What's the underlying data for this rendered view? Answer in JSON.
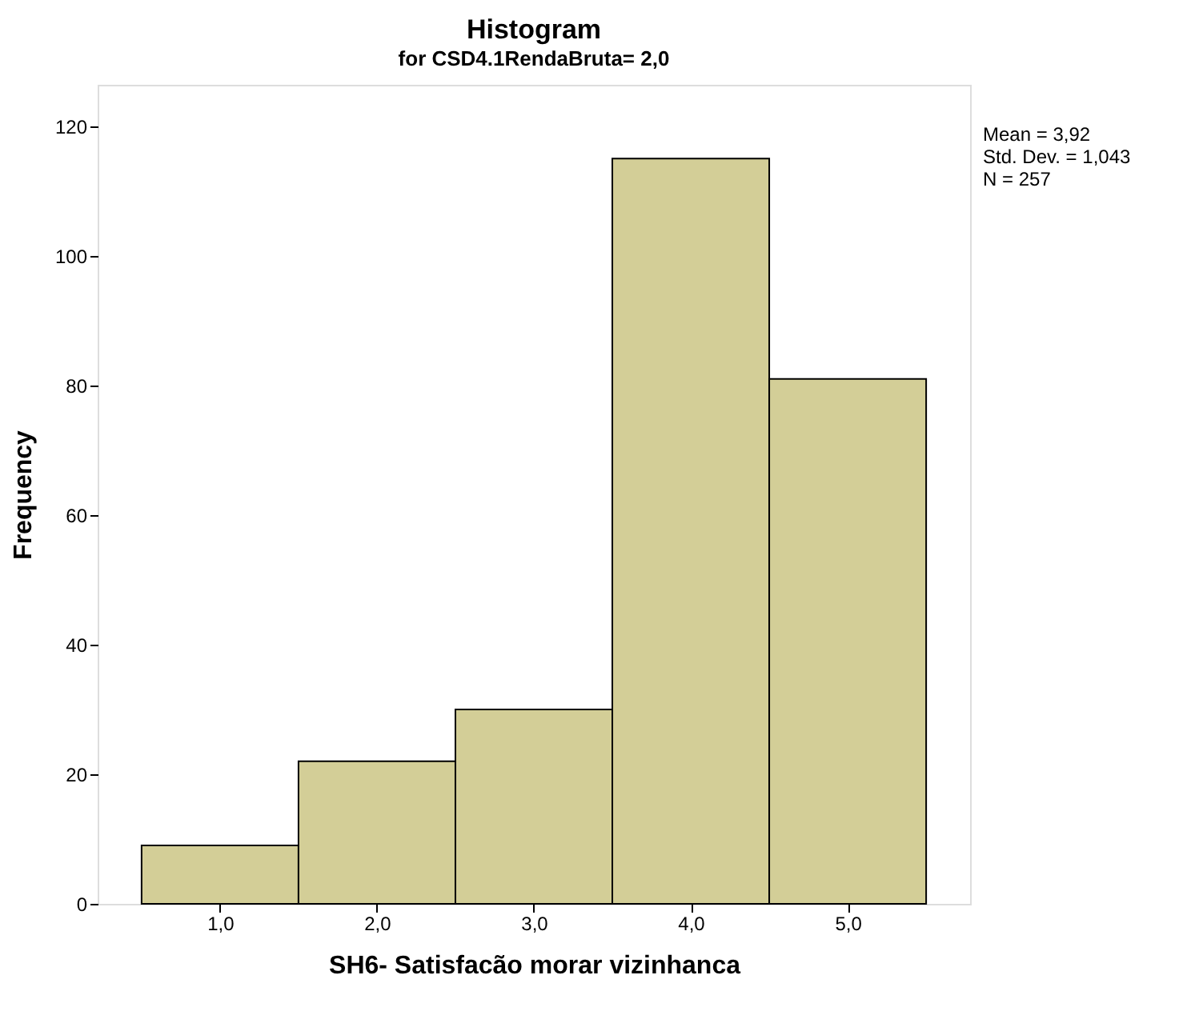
{
  "chart_data": {
    "type": "histogram",
    "title": "Histogram",
    "subtitle": "for CSD4.1RendaBruta= 2,0",
    "xlabel": "SH6- Satisfacão morar vizinhanca",
    "ylabel": "Frequency",
    "bins": [
      0.5,
      1.5,
      2.5,
      3.5,
      4.5,
      5.5
    ],
    "values": [
      9,
      22,
      30,
      115,
      81
    ],
    "color": "#d3ce97",
    "xlim": [
      0.22,
      5.78
    ],
    "ylim": [
      0,
      126.4
    ],
    "xticks": [
      {
        "value": 1,
        "label": "1,0"
      },
      {
        "value": 2,
        "label": "2,0"
      },
      {
        "value": 3,
        "label": "3,0"
      },
      {
        "value": 4,
        "label": "4,0"
      },
      {
        "value": 5,
        "label": "5,0"
      }
    ],
    "yticks": [
      0,
      20,
      40,
      60,
      80,
      100,
      120
    ],
    "grid": false,
    "annotations": [
      "Mean = 3,92",
      "Std. Dev. = 1,043",
      "N = 257"
    ]
  }
}
